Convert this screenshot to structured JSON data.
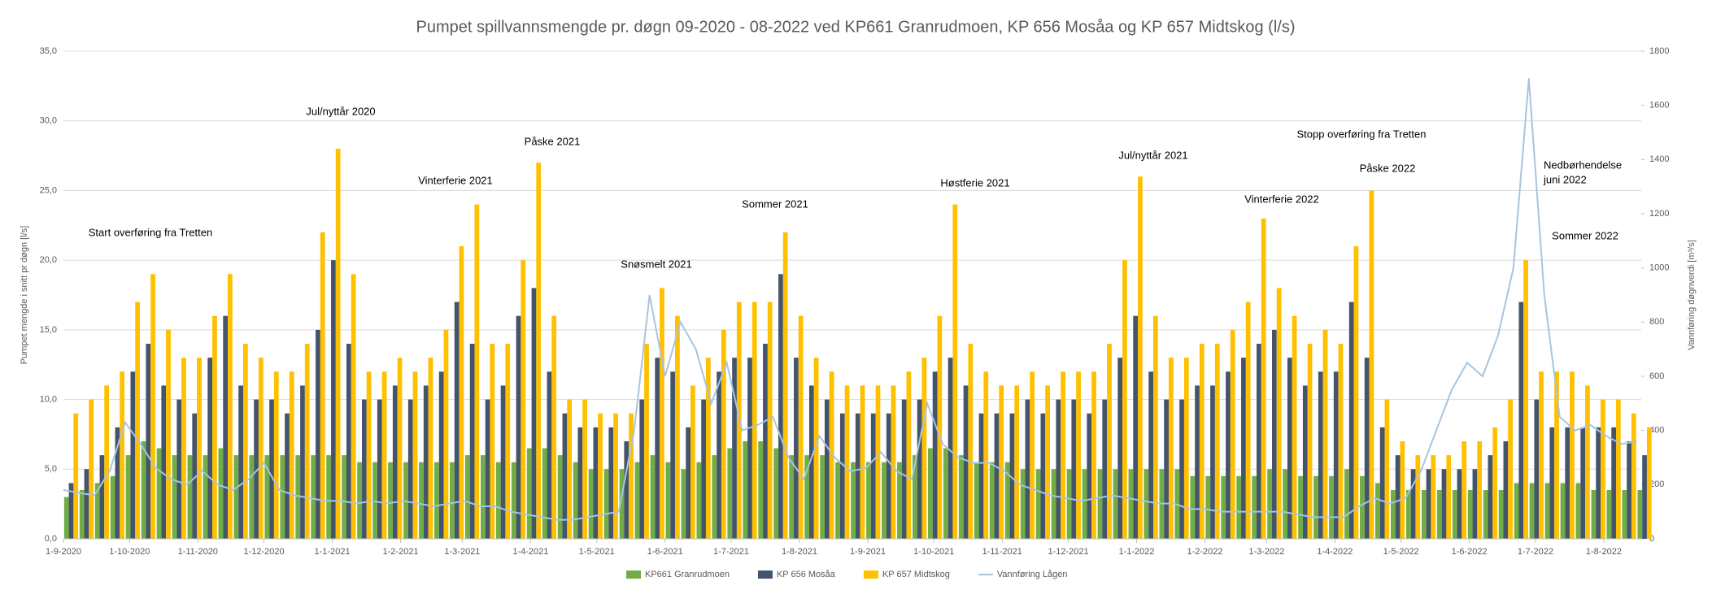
{
  "chart_data": {
    "type": "bar",
    "title": "Pumpet spillvannsmengde pr. døgn 09-2020 - 08-2022 ved KP661 Granrudmoen, KP 656 Mosåa og KP 657 Midtskog (l/s)",
    "ylabel": "Pumpet mengde i snitt pr døgn [l/s]",
    "y2label": "Vannføring døgnverdi [m³/s]",
    "grid": true,
    "xlim": [
      0,
      716
    ],
    "xticks": [
      {
        "value": 0,
        "label": "1-9-2020"
      },
      {
        "value": 30,
        "label": "1-10-2020"
      },
      {
        "value": 61,
        "label": "1-11-2020"
      },
      {
        "value": 91,
        "label": "1-12-2020"
      },
      {
        "value": 122,
        "label": "1-1-2021"
      },
      {
        "value": 153,
        "label": "1-2-2021"
      },
      {
        "value": 181,
        "label": "1-3-2021"
      },
      {
        "value": 212,
        "label": "1-4-2021"
      },
      {
        "value": 242,
        "label": "1-5-2021"
      },
      {
        "value": 273,
        "label": "1-6-2021"
      },
      {
        "value": 303,
        "label": "1-7-2021"
      },
      {
        "value": 334,
        "label": "1-8-2021"
      },
      {
        "value": 365,
        "label": "1-9-2021"
      },
      {
        "value": 395,
        "label": "1-10-2021"
      },
      {
        "value": 426,
        "label": "1-11-2021"
      },
      {
        "value": 456,
        "label": "1-12-2021"
      },
      {
        "value": 487,
        "label": "1-1-2022"
      },
      {
        "value": 518,
        "label": "1-2-2022"
      },
      {
        "value": 546,
        "label": "1-3-2022"
      },
      {
        "value": 577,
        "label": "1-4-2022"
      },
      {
        "value": 607,
        "label": "1-5-2022"
      },
      {
        "value": 638,
        "label": "1-6-2022"
      },
      {
        "value": 668,
        "label": "1-7-2022"
      },
      {
        "value": 699,
        "label": "1-8-2022"
      }
    ],
    "ylim": [
      0,
      35
    ],
    "yticks": [
      {
        "value": 0,
        "label": "0,0"
      },
      {
        "value": 5,
        "label": "5,0"
      },
      {
        "value": 10,
        "label": "10,0"
      },
      {
        "value": 15,
        "label": "15,0"
      },
      {
        "value": 20,
        "label": "20,0"
      },
      {
        "value": 25,
        "label": "25,0"
      },
      {
        "value": 30,
        "label": "30,0"
      },
      {
        "value": 35,
        "label": "35,0"
      }
    ],
    "y2lim": [
      0,
      1800
    ],
    "y2ticks": [
      0,
      200,
      400,
      600,
      800,
      1000,
      1200,
      1400,
      1600,
      1800
    ],
    "x": [
      0,
      7,
      14,
      21,
      28,
      35,
      42,
      49,
      56,
      63,
      70,
      77,
      84,
      91,
      98,
      105,
      112,
      119,
      126,
      133,
      140,
      147,
      154,
      161,
      168,
      175,
      182,
      189,
      196,
      203,
      210,
      217,
      224,
      231,
      238,
      245,
      252,
      259,
      266,
      273,
      280,
      287,
      294,
      301,
      308,
      315,
      322,
      329,
      336,
      343,
      350,
      357,
      364,
      371,
      378,
      385,
      392,
      399,
      406,
      413,
      420,
      427,
      434,
      441,
      448,
      455,
      462,
      469,
      476,
      483,
      490,
      497,
      504,
      511,
      518,
      525,
      532,
      539,
      546,
      553,
      560,
      567,
      574,
      581,
      588,
      595,
      602,
      609,
      616,
      623,
      630,
      637,
      644,
      651,
      658,
      665,
      672,
      679,
      686,
      693,
      700,
      707,
      714
    ],
    "series": [
      {
        "name": "KP661 Granrudmoen",
        "color": "#70ad47",
        "values": [
          3,
          3.5,
          4,
          4.5,
          6,
          7,
          6.5,
          6,
          6,
          6,
          6.5,
          6,
          6,
          6,
          6,
          6,
          6,
          6,
          6,
          5.5,
          5.5,
          5.5,
          5.5,
          5.5,
          5.5,
          5.5,
          6,
          6,
          5.5,
          5.5,
          6.5,
          6.5,
          6,
          5.5,
          5,
          5,
          5,
          5.5,
          6,
          5.5,
          5,
          5.5,
          6,
          6.5,
          7,
          7,
          6.5,
          6,
          6,
          6,
          5.5,
          5.5,
          5.5,
          5.5,
          5.5,
          6,
          6.5,
          6.5,
          6,
          5.5,
          5.5,
          5.5,
          5,
          5,
          5,
          5,
          5,
          5,
          5,
          5,
          5,
          5,
          5,
          4.5,
          4.5,
          4.5,
          4.5,
          4.5,
          5,
          5,
          4.5,
          4.5,
          4.5,
          5,
          4.5,
          4,
          3.5,
          3.5,
          3.5,
          3.5,
          3.5,
          3.5,
          3.5,
          3.5,
          4,
          4,
          4,
          4,
          4,
          3.5,
          3.5,
          3.5,
          3.5
        ]
      },
      {
        "name": "KP 656 Mosåa",
        "color": "#44546a",
        "values": [
          4,
          5,
          6,
          8,
          12,
          14,
          11,
          10,
          9,
          13,
          16,
          11,
          10,
          10,
          9,
          11,
          15,
          20,
          14,
          10,
          10,
          11,
          10,
          11,
          12,
          17,
          14,
          10,
          11,
          16,
          18,
          12,
          9,
          8,
          8,
          8,
          7,
          10,
          13,
          12,
          8,
          10,
          12,
          13,
          13,
          14,
          19,
          13,
          11,
          10,
          9,
          9,
          9,
          9,
          10,
          10,
          12,
          13,
          11,
          9,
          9,
          9,
          10,
          9,
          10,
          10,
          9,
          10,
          13,
          16,
          12,
          10,
          10,
          11,
          11,
          12,
          13,
          14,
          15,
          13,
          11,
          12,
          12,
          17,
          13,
          8,
          6,
          5,
          5,
          5,
          5,
          5,
          6,
          7,
          17,
          10,
          8,
          8,
          8,
          8,
          8,
          7,
          6
        ]
      },
      {
        "name": "KP 657 Midtskog",
        "color": "#ffc000",
        "values": [
          9,
          10,
          11,
          12,
          17,
          19,
          15,
          13,
          13,
          16,
          19,
          14,
          13,
          12,
          12,
          14,
          22,
          28,
          19,
          12,
          12,
          13,
          12,
          13,
          15,
          21,
          24,
          14,
          14,
          20,
          27,
          16,
          10,
          10,
          9,
          9,
          9,
          14,
          18,
          16,
          11,
          13,
          15,
          17,
          17,
          17,
          22,
          16,
          13,
          12,
          11,
          11,
          11,
          11,
          12,
          13,
          16,
          24,
          14,
          12,
          11,
          11,
          12,
          11,
          12,
          12,
          12,
          14,
          20,
          26,
          16,
          13,
          13,
          14,
          14,
          15,
          17,
          23,
          18,
          16,
          14,
          15,
          14,
          21,
          25,
          10,
          7,
          6,
          6,
          6,
          7,
          7,
          8,
          10,
          20,
          12,
          12,
          12,
          11,
          10,
          10,
          9,
          8
        ]
      },
      {
        "name": "Vannføring Lågen",
        "color": "#a9c4e0",
        "axis": "y2",
        "type": "line",
        "values": [
          180,
          170,
          160,
          250,
          430,
          350,
          260,
          220,
          200,
          250,
          200,
          180,
          220,
          280,
          180,
          160,
          150,
          140,
          140,
          130,
          140,
          130,
          140,
          130,
          120,
          130,
          140,
          120,
          120,
          100,
          90,
          80,
          70,
          70,
          80,
          90,
          100,
          400,
          900,
          600,
          800,
          700,
          500,
          650,
          400,
          420,
          450,
          300,
          220,
          380,
          300,
          250,
          260,
          320,
          250,
          220,
          500,
          350,
          300,
          280,
          280,
          250,
          200,
          180,
          160,
          150,
          140,
          150,
          160,
          150,
          140,
          130,
          130,
          110,
          110,
          100,
          100,
          100,
          100,
          100,
          90,
          80,
          80,
          80,
          120,
          150,
          130,
          150,
          250,
          400,
          550,
          650,
          600,
          750,
          1000,
          1700,
          900,
          450,
          400,
          420,
          380,
          350,
          360
        ]
      }
    ],
    "annotations": [
      "Start overføring fra Tretten",
      "Jul/nyttår 2020",
      "Vinterferie 2021",
      "Påske 2021",
      "Snøsmelt 2021",
      "Sommer 2021",
      "Høstferie 2021",
      "Jul/nyttår 2021",
      "Vinterferie 2022",
      "Stopp overføring fra Tretten",
      "Påske 2022",
      "Nedbørhendelse",
      "juni 2022",
      "Sommer 2022"
    ]
  }
}
